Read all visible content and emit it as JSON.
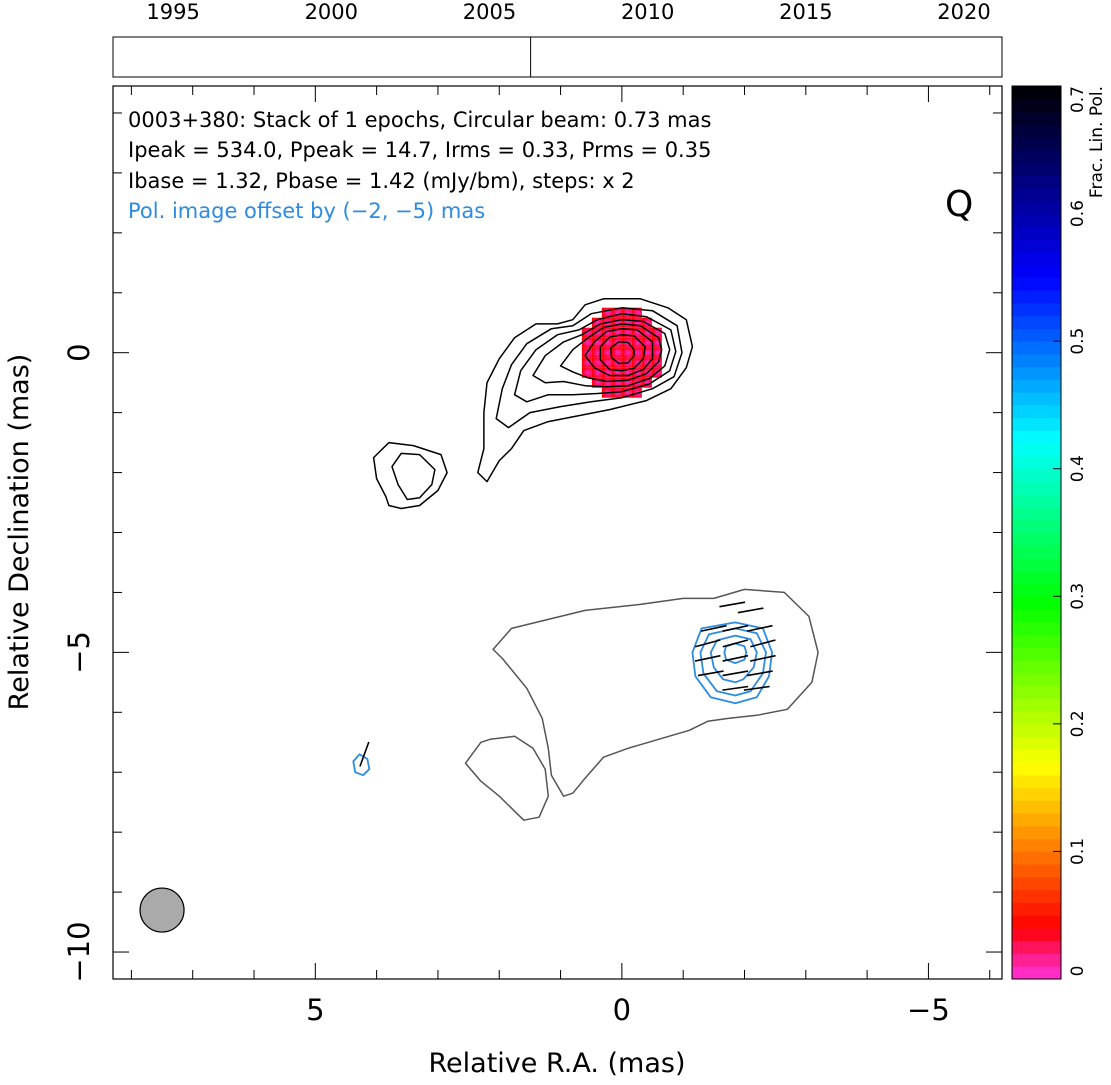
{
  "chart_data": {
    "type": "contour",
    "timeline": {
      "tick_labels": [
        "1995",
        "2000",
        "2005",
        "2010",
        "2015",
        "2020"
      ],
      "range": [
        1993.1,
        2021.2
      ],
      "epochs": [
        2006.3
      ]
    },
    "annotations": {
      "line1": "0003+380: Stack of 1 epochs, Circular beam: 0.73 mas",
      "line2": "Ipeak = 534.0, Ppeak = 14.7, Irms = 0.33, Prms = 0.35",
      "line3": "Ibase = 1.32, Pbase = 1.42 (mJy/bm), steps: x 2",
      "offset_note": "Pol. image offset by (−2, −5) mas",
      "band": "Q"
    },
    "xlabel": "Relative R.A. (mas)",
    "ylabel": "Relative Declination (mas)",
    "xlim": [
      8.3,
      -6.2
    ],
    "ylim": [
      -10.45,
      4.45
    ],
    "x_ticks": [
      {
        "value": 5,
        "label": "5"
      },
      {
        "value": 0,
        "label": "0"
      },
      {
        "value": -5,
        "label": "−5"
      }
    ],
    "y_ticks": [
      {
        "value": 0,
        "label": "0"
      },
      {
        "value": -5,
        "label": "−5"
      },
      {
        "value": -10,
        "label": "−10"
      }
    ],
    "colorbar": {
      "label": "Frac. Lin. Pol.",
      "range": [
        0,
        0.7
      ],
      "ticks": [
        {
          "value": 0,
          "label": "0"
        },
        {
          "value": 0.1,
          "label": "0.1"
        },
        {
          "value": 0.2,
          "label": "0.2"
        },
        {
          "value": 0.3,
          "label": "0.3"
        },
        {
          "value": 0.4,
          "label": "0.4"
        },
        {
          "value": 0.5,
          "label": "0.5"
        },
        {
          "value": 0.6,
          "label": "0.6"
        },
        {
          "value": 0.7,
          "label": "0.7"
        }
      ]
    },
    "beam": {
      "ra": 7.5,
      "dec": -9.3,
      "diameter_mas": 0.73,
      "color": "#aaaaaa"
    },
    "core_pol": {
      "ra": 0.0,
      "dec": 0.0,
      "frac_pol": 0.02
    },
    "jet_contours": [
      [
        [
          -1.05,
          0.55
        ],
        [
          -0.75,
          0.75
        ],
        [
          -0.3,
          0.9
        ],
        [
          0.3,
          0.9
        ],
        [
          0.6,
          0.8
        ],
        [
          0.8,
          0.55
        ],
        [
          1.05,
          0.48
        ],
        [
          1.4,
          0.48
        ],
        [
          1.75,
          0.25
        ],
        [
          2.0,
          -0.1
        ],
        [
          2.2,
          -0.5
        ],
        [
          2.25,
          -1.0
        ],
        [
          2.25,
          -1.6
        ],
        [
          2.35,
          -2.0
        ],
        [
          2.2,
          -2.15
        ],
        [
          2.0,
          -1.8
        ],
        [
          1.8,
          -1.6
        ],
        [
          1.6,
          -1.3
        ],
        [
          1.2,
          -1.15
        ],
        [
          0.7,
          -1.05
        ],
        [
          0.2,
          -0.95
        ],
        [
          -0.4,
          -0.8
        ],
        [
          -0.8,
          -0.6
        ],
        [
          -1.05,
          -0.25
        ],
        [
          -1.15,
          0.1
        ],
        [
          -1.05,
          0.55
        ]
      ],
      [
        [
          -0.9,
          0.45
        ],
        [
          -0.5,
          0.7
        ],
        [
          0.0,
          0.75
        ],
        [
          0.5,
          0.65
        ],
        [
          0.8,
          0.45
        ],
        [
          1.15,
          0.4
        ],
        [
          1.55,
          0.15
        ],
        [
          1.8,
          -0.2
        ],
        [
          1.95,
          -0.6
        ],
        [
          2.05,
          -1.1
        ],
        [
          1.85,
          -1.25
        ],
        [
          1.5,
          -1.0
        ],
        [
          1.0,
          -0.9
        ],
        [
          0.5,
          -0.82
        ],
        [
          0.0,
          -0.75
        ],
        [
          -0.5,
          -0.6
        ],
        [
          -0.85,
          -0.4
        ],
        [
          -0.98,
          0.0
        ],
        [
          -0.9,
          0.45
        ]
      ],
      [
        [
          -0.8,
          0.38
        ],
        [
          -0.4,
          0.6
        ],
        [
          0.0,
          0.65
        ],
        [
          0.4,
          0.55
        ],
        [
          0.7,
          0.38
        ],
        [
          1.05,
          0.3
        ],
        [
          1.4,
          0.05
        ],
        [
          1.65,
          -0.3
        ],
        [
          1.75,
          -0.7
        ],
        [
          1.55,
          -0.82
        ],
        [
          1.2,
          -0.7
        ],
        [
          0.8,
          -0.7
        ],
        [
          0.4,
          -0.68
        ],
        [
          0.0,
          -0.65
        ],
        [
          -0.45,
          -0.52
        ],
        [
          -0.78,
          -0.3
        ],
        [
          -0.88,
          0.02
        ],
        [
          -0.8,
          0.38
        ]
      ],
      [
        [
          -0.7,
          0.32
        ],
        [
          -0.35,
          0.52
        ],
        [
          0.0,
          0.55
        ],
        [
          0.35,
          0.48
        ],
        [
          0.65,
          0.3
        ],
        [
          0.95,
          0.18
        ],
        [
          1.25,
          -0.05
        ],
        [
          1.45,
          -0.38
        ],
        [
          1.25,
          -0.5
        ],
        [
          0.95,
          -0.48
        ],
        [
          0.6,
          -0.55
        ],
        [
          0.25,
          -0.57
        ],
        [
          -0.1,
          -0.55
        ],
        [
          -0.45,
          -0.43
        ],
        [
          -0.7,
          -0.22
        ],
        [
          -0.78,
          0.05
        ],
        [
          -0.7,
          0.32
        ]
      ],
      [
        [
          -0.6,
          0.25
        ],
        [
          -0.3,
          0.45
        ],
        [
          0.0,
          0.48
        ],
        [
          0.3,
          0.42
        ],
        [
          0.55,
          0.25
        ],
        [
          0.8,
          0.05
        ],
        [
          1.0,
          -0.22
        ],
        [
          0.8,
          -0.32
        ],
        [
          0.55,
          -0.42
        ],
        [
          0.25,
          -0.48
        ],
        [
          -0.1,
          -0.46
        ],
        [
          -0.4,
          -0.35
        ],
        [
          -0.6,
          -0.15
        ],
        [
          -0.65,
          0.05
        ],
        [
          -0.6,
          0.25
        ]
      ],
      [
        [
          -0.5,
          0.18
        ],
        [
          -0.25,
          0.38
        ],
        [
          0.0,
          0.4
        ],
        [
          0.25,
          0.35
        ],
        [
          0.45,
          0.18
        ],
        [
          0.6,
          -0.05
        ],
        [
          0.45,
          -0.25
        ],
        [
          0.2,
          -0.38
        ],
        [
          -0.1,
          -0.38
        ],
        [
          -0.35,
          -0.28
        ],
        [
          -0.5,
          -0.1
        ],
        [
          -0.5,
          0.18
        ]
      ],
      [
        [
          -0.38,
          0.1
        ],
        [
          -0.2,
          0.28
        ],
        [
          0.0,
          0.3
        ],
        [
          0.2,
          0.26
        ],
        [
          0.35,
          0.1
        ],
        [
          0.35,
          -0.12
        ],
        [
          0.2,
          -0.28
        ],
        [
          0.0,
          -0.3
        ],
        [
          -0.2,
          -0.26
        ],
        [
          -0.35,
          -0.1
        ],
        [
          -0.38,
          0.1
        ]
      ],
      [
        [
          -0.2,
          0.05
        ],
        [
          -0.1,
          0.17
        ],
        [
          0.05,
          0.18
        ],
        [
          0.18,
          0.08
        ],
        [
          0.17,
          -0.08
        ],
        [
          0.05,
          -0.18
        ],
        [
          -0.1,
          -0.17
        ],
        [
          -0.2,
          -0.05
        ],
        [
          -0.2,
          0.05
        ]
      ],
      [
        [
          3.4,
          -1.55
        ],
        [
          3.8,
          -1.5
        ],
        [
          4.05,
          -1.75
        ],
        [
          4.0,
          -2.1
        ],
        [
          3.85,
          -2.4
        ],
        [
          3.8,
          -2.55
        ],
        [
          3.6,
          -2.6
        ],
        [
          3.3,
          -2.55
        ],
        [
          3.0,
          -2.3
        ],
        [
          2.85,
          -2.0
        ],
        [
          2.95,
          -1.7
        ],
        [
          3.4,
          -1.55
        ]
      ],
      [
        [
          3.3,
          -1.7
        ],
        [
          3.6,
          -1.68
        ],
        [
          3.75,
          -1.9
        ],
        [
          3.65,
          -2.2
        ],
        [
          3.5,
          -2.45
        ],
        [
          3.3,
          -2.42
        ],
        [
          3.1,
          -2.2
        ],
        [
          3.05,
          -1.95
        ],
        [
          3.3,
          -1.7
        ]
      ]
    ],
    "pol_total_contours": [
      [
        [
          -1.5,
          -4.1
        ],
        [
          -2.0,
          -3.95
        ],
        [
          -2.65,
          -4.0
        ],
        [
          -3.05,
          -4.4
        ],
        [
          -3.2,
          -5.0
        ],
        [
          -3.1,
          -5.5
        ],
        [
          -2.7,
          -5.95
        ],
        [
          -2.2,
          -6.05
        ],
        [
          -1.75,
          -6.1
        ],
        [
          -1.4,
          -6.15
        ],
        [
          -1.1,
          -6.3
        ],
        [
          -0.6,
          -6.45
        ],
        [
          -0.1,
          -6.6
        ],
        [
          0.3,
          -6.75
        ],
        [
          0.6,
          -7.1
        ],
        [
          0.8,
          -7.35
        ],
        [
          0.95,
          -7.4
        ],
        [
          1.15,
          -7.05
        ],
        [
          1.2,
          -6.6
        ],
        [
          1.3,
          -6.1
        ],
        [
          1.55,
          -5.6
        ],
        [
          1.95,
          -5.1
        ],
        [
          2.1,
          -4.95
        ],
        [
          1.8,
          -4.6
        ],
        [
          1.2,
          -4.45
        ],
        [
          0.6,
          -4.3
        ],
        [
          -0.3,
          -4.2
        ],
        [
          -1.0,
          -4.1
        ],
        [
          -1.5,
          -4.1
        ]
      ],
      [
        [
          2.15,
          -6.45
        ],
        [
          1.75,
          -6.4
        ],
        [
          1.45,
          -6.6
        ],
        [
          1.25,
          -6.95
        ],
        [
          1.2,
          -7.4
        ],
        [
          1.35,
          -7.75
        ],
        [
          1.6,
          -7.8
        ],
        [
          1.8,
          -7.6
        ],
        [
          2.0,
          -7.4
        ],
        [
          2.3,
          -7.15
        ],
        [
          2.55,
          -6.85
        ],
        [
          2.3,
          -6.5
        ],
        [
          2.15,
          -6.45
        ]
      ]
    ],
    "pol_contours": [
      [
        [
          -1.85,
          -4.5
        ],
        [
          -2.3,
          -4.6
        ],
        [
          -2.45,
          -5.0
        ],
        [
          -2.4,
          -5.4
        ],
        [
          -2.2,
          -5.75
        ],
        [
          -1.85,
          -5.85
        ],
        [
          -1.45,
          -5.75
        ],
        [
          -1.2,
          -5.4
        ],
        [
          -1.15,
          -5.0
        ],
        [
          -1.3,
          -4.6
        ],
        [
          -1.85,
          -4.5
        ]
      ],
      [
        [
          -1.85,
          -4.6
        ],
        [
          -2.2,
          -4.68
        ],
        [
          -2.35,
          -5.0
        ],
        [
          -2.3,
          -5.35
        ],
        [
          -2.1,
          -5.65
        ],
        [
          -1.85,
          -5.72
        ],
        [
          -1.55,
          -5.65
        ],
        [
          -1.33,
          -5.35
        ],
        [
          -1.28,
          -5.0
        ],
        [
          -1.42,
          -4.7
        ],
        [
          -1.85,
          -4.6
        ]
      ],
      [
        [
          -1.85,
          -4.72
        ],
        [
          -2.1,
          -4.78
        ],
        [
          -2.2,
          -5.0
        ],
        [
          -2.15,
          -5.25
        ],
        [
          -1.98,
          -5.45
        ],
        [
          -1.85,
          -5.5
        ],
        [
          -1.65,
          -5.45
        ],
        [
          -1.5,
          -5.25
        ],
        [
          -1.45,
          -5.0
        ],
        [
          -1.55,
          -4.8
        ],
        [
          -1.85,
          -4.72
        ]
      ],
      [
        [
          -1.85,
          -4.85
        ],
        [
          -2.0,
          -4.9
        ],
        [
          -2.03,
          -5.0
        ],
        [
          -2.0,
          -5.12
        ],
        [
          -1.85,
          -5.18
        ],
        [
          -1.7,
          -5.12
        ],
        [
          -1.67,
          -5.0
        ],
        [
          -1.7,
          -4.9
        ],
        [
          -1.85,
          -4.85
        ]
      ],
      [
        [
          4.28,
          -6.7
        ],
        [
          4.38,
          -6.82
        ],
        [
          4.35,
          -7.0
        ],
        [
          4.22,
          -7.05
        ],
        [
          4.12,
          -6.95
        ],
        [
          4.15,
          -6.78
        ],
        [
          4.28,
          -6.7
        ]
      ]
    ],
    "evpa_sticks": [
      {
        "ra": -1.8,
        "dec": -4.2,
        "angle_deg": 10
      },
      {
        "ra": -2.1,
        "dec": -4.3,
        "angle_deg": 10
      },
      {
        "ra": -1.5,
        "dec": -4.6,
        "angle_deg": 12
      },
      {
        "ra": -1.85,
        "dec": -4.6,
        "angle_deg": 12
      },
      {
        "ra": -2.25,
        "dec": -4.6,
        "angle_deg": 12
      },
      {
        "ra": -1.4,
        "dec": -4.85,
        "angle_deg": 15
      },
      {
        "ra": -1.85,
        "dec": -4.85,
        "angle_deg": 15
      },
      {
        "ra": -2.3,
        "dec": -4.85,
        "angle_deg": 15
      },
      {
        "ra": -1.4,
        "dec": -5.1,
        "angle_deg": 12
      },
      {
        "ra": -1.85,
        "dec": -5.1,
        "angle_deg": 12
      },
      {
        "ra": -2.3,
        "dec": -5.1,
        "angle_deg": 12
      },
      {
        "ra": -1.45,
        "dec": -5.35,
        "angle_deg": 10
      },
      {
        "ra": -1.85,
        "dec": -5.35,
        "angle_deg": 10
      },
      {
        "ra": -2.25,
        "dec": -5.35,
        "angle_deg": 10
      },
      {
        "ra": -1.85,
        "dec": -5.6,
        "angle_deg": 8
      },
      {
        "ra": -2.2,
        "dec": -5.6,
        "angle_deg": 8
      },
      {
        "ra": 4.2,
        "dec": -6.7,
        "angle_deg": 70
      }
    ],
    "colors": {
      "ink": "#000000",
      "pol_contour": "#2d8be0",
      "offset_text": "#2d8be0",
      "pol_total": "#555555"
    }
  }
}
